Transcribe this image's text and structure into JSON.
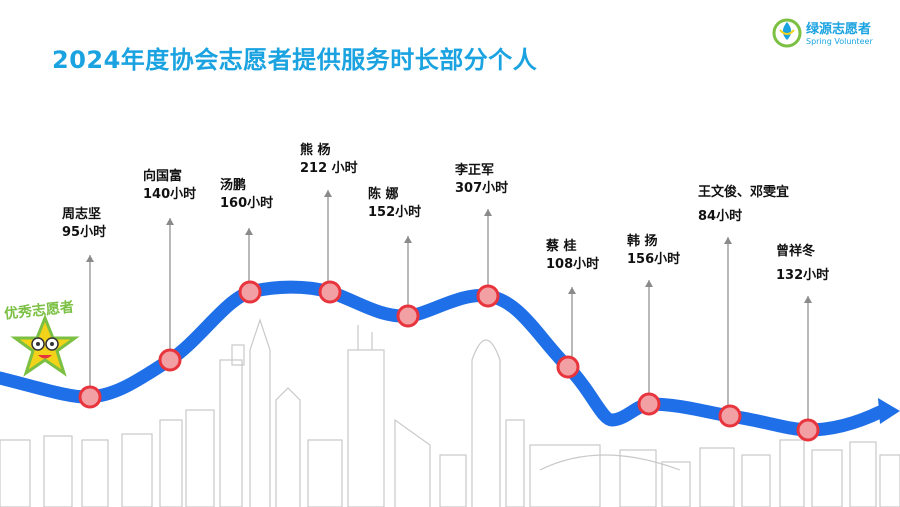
{
  "title": "2024年度协会志愿者提供服务时长部分个人",
  "logo": {
    "name": "绿源志愿者",
    "subtitle": "Spring Volunteer",
    "icon": "leaf-drop-icon"
  },
  "badge": {
    "text": "优秀志愿者",
    "icon": "star-mascot-icon"
  },
  "colors": {
    "accent": "#1aa3e0",
    "curve": "#1f6fe8",
    "marker": "#e8343c",
    "badge": "#7bc043",
    "city": "#c9c9c9"
  },
  "volunteers": [
    {
      "name": "周志坚",
      "hours": "95小时"
    },
    {
      "name": "向国富",
      "hours": "140小时"
    },
    {
      "name": "汤鹏",
      "hours": "160小时"
    },
    {
      "name": "熊  杨",
      "hours": "212 小时"
    },
    {
      "name": "陈 娜",
      "hours": "152小时"
    },
    {
      "name": "李正军",
      "hours": "307小时"
    },
    {
      "name": "蔡 桂",
      "hours": "108小时"
    },
    {
      "name": "韩 扬",
      "hours": "156小时"
    },
    {
      "name": "王文俊、邓雯宜",
      "hours": "84小时"
    },
    {
      "name": "曾祥冬",
      "hours": "132小时"
    }
  ]
}
